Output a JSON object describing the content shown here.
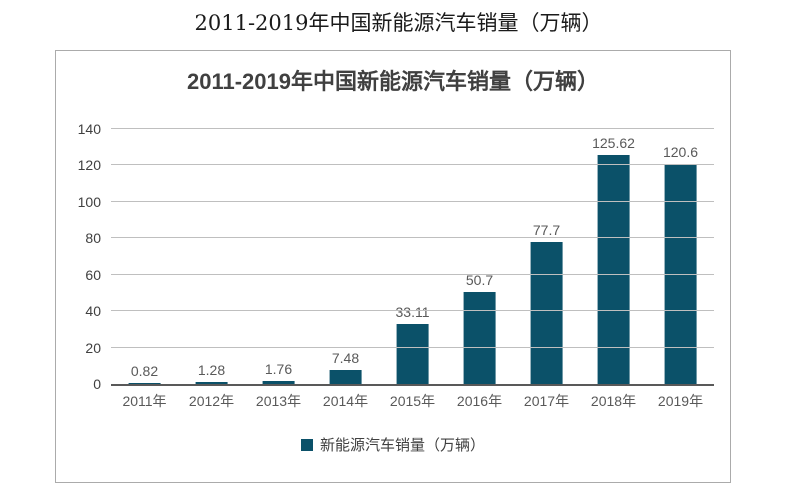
{
  "page": {
    "title": "2011-2019年中国新能源汽车销量（万辆）"
  },
  "chart_data": {
    "type": "bar",
    "title": "2011-2019年中国新能源汽车销量（万辆）",
    "categories": [
      "2011年",
      "2012年",
      "2013年",
      "2014年",
      "2015年",
      "2016年",
      "2017年",
      "2018年",
      "2019年"
    ],
    "values": [
      0.82,
      1.28,
      1.76,
      7.48,
      33.11,
      50.7,
      77.7,
      125.62,
      120.6
    ],
    "value_labels": [
      "0.82",
      "1.28",
      "1.76",
      "7.48",
      "33.11",
      "50.7",
      "77.7",
      "125.62",
      "120.6"
    ],
    "series_name": "新能源汽车销量（万辆）",
    "legend": "新能源汽车销量（万辆）",
    "xlabel": "",
    "ylabel": "",
    "ylim": [
      0,
      140
    ],
    "ytick_step": 20,
    "yticks": [
      0,
      20,
      40,
      60,
      80,
      100,
      120,
      140
    ],
    "grid": true,
    "legend_position": "bottom",
    "colors": {
      "bar": "#0b5169",
      "gridline": "#bfbfbf",
      "axis": "#595959",
      "tick_label": "#404040",
      "data_label": "#595959"
    }
  }
}
